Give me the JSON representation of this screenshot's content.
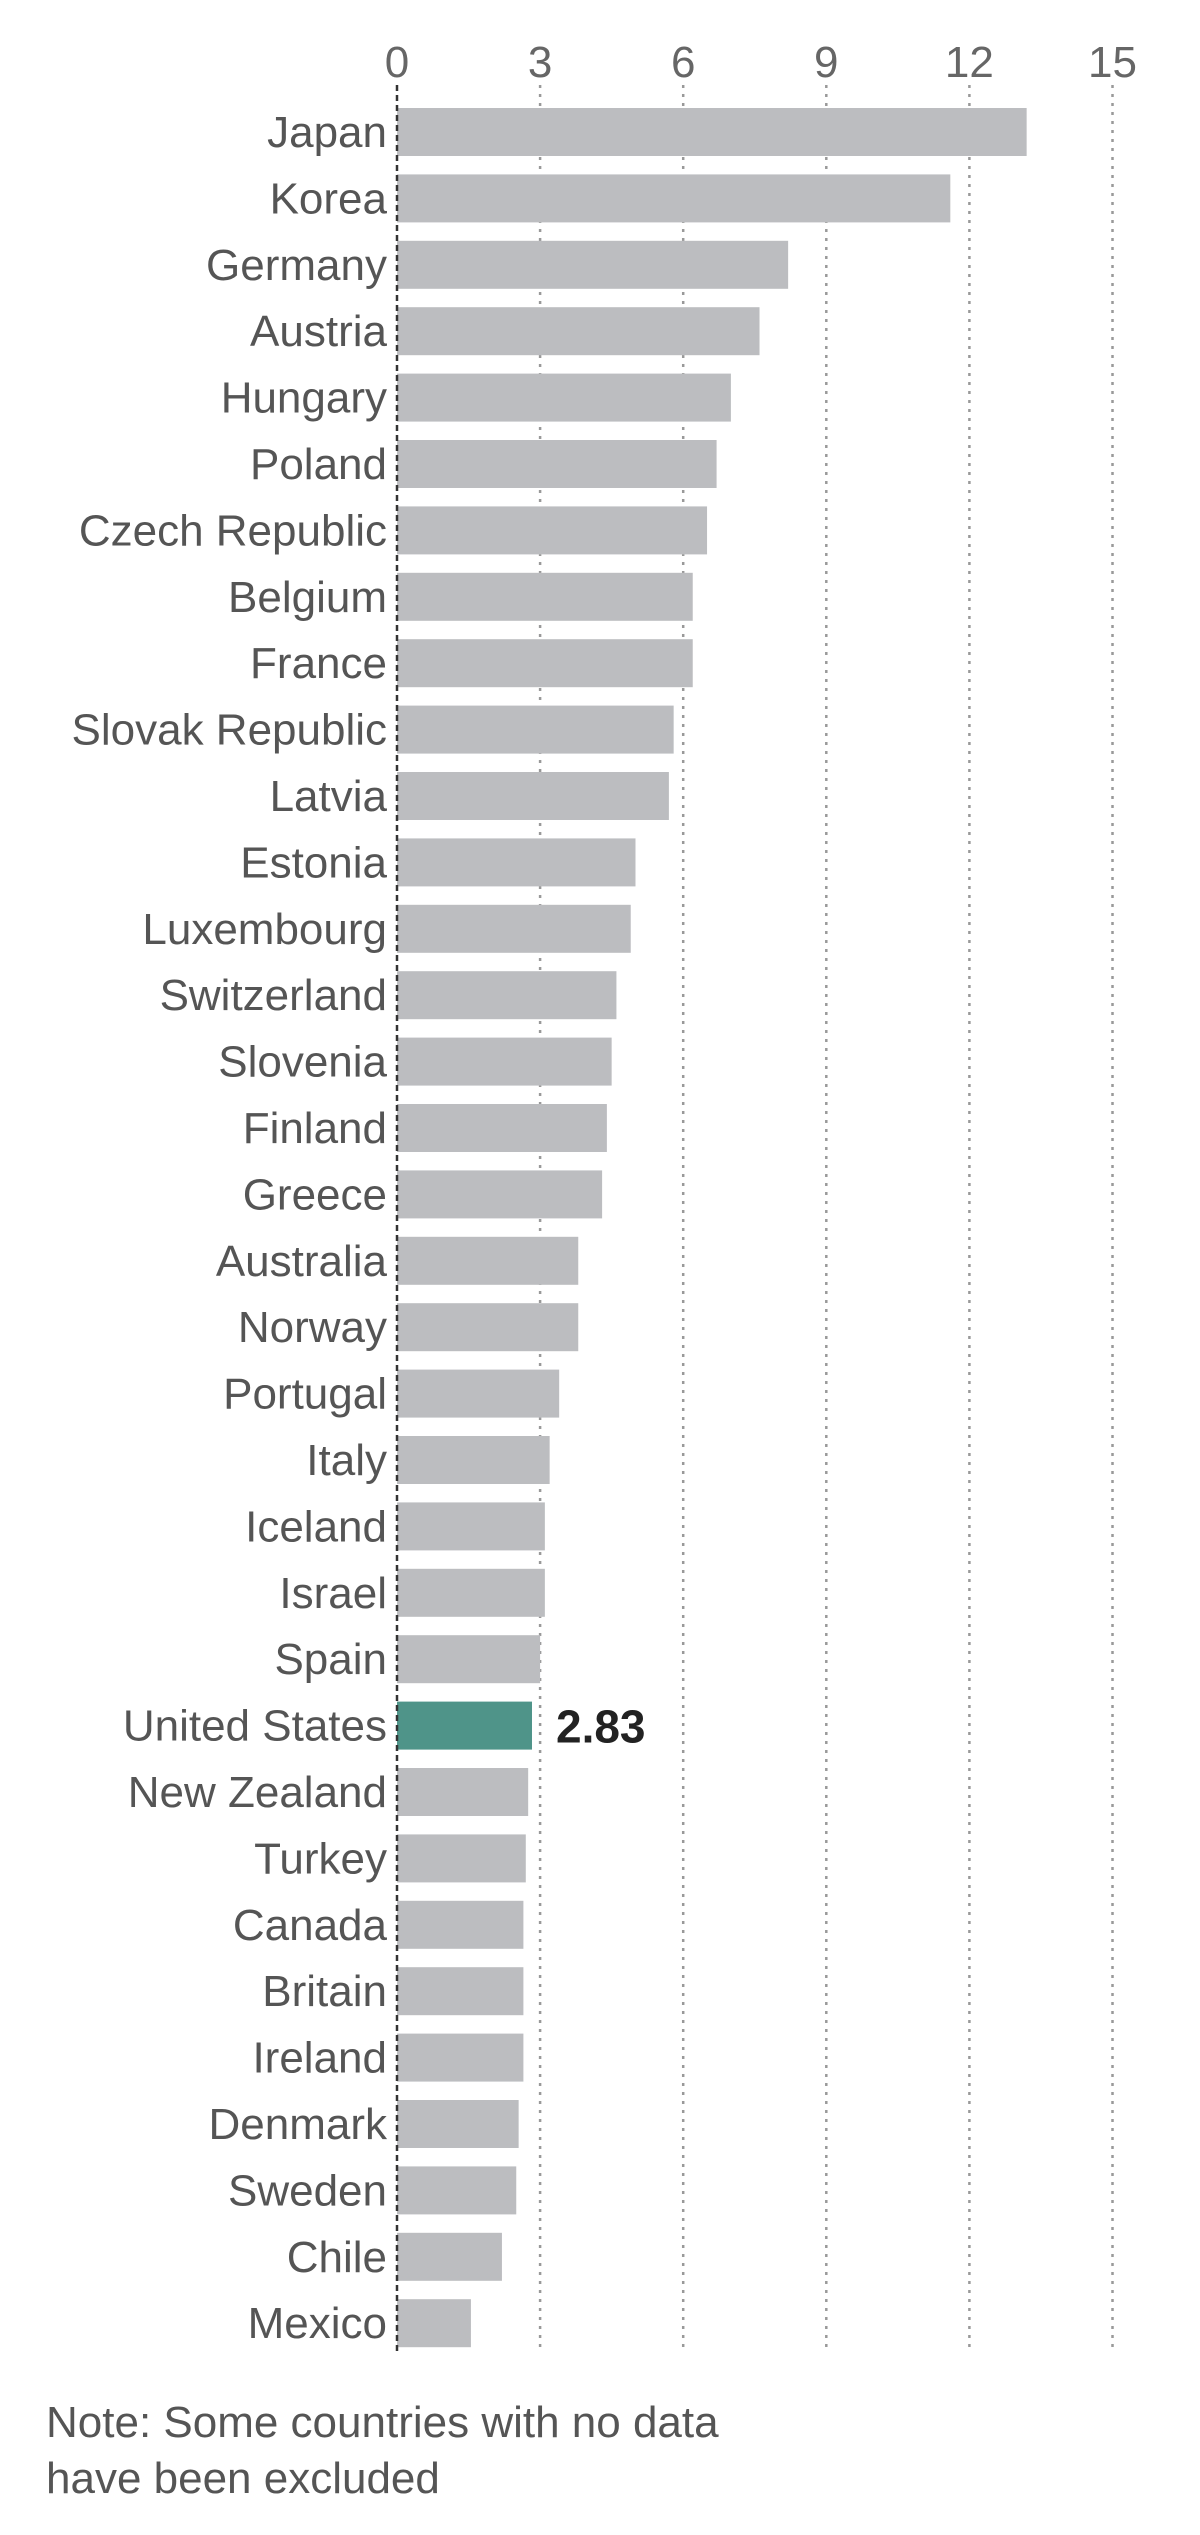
{
  "chart_data": {
    "type": "bar",
    "orientation": "horizontal",
    "xlim": [
      0,
      15
    ],
    "x_ticks": [
      "0",
      "3",
      "6",
      "9",
      "12",
      "15"
    ],
    "grid": "vertical dotted",
    "categories": [
      "Japan",
      "Korea",
      "Germany",
      "Austria",
      "Hungary",
      "Poland",
      "Czech Republic",
      "Belgium",
      "France",
      "Slovak Republic",
      "Latvia",
      "Estonia",
      "Luxembourg",
      "Switzerland",
      "Slovenia",
      "Finland",
      "Greece",
      "Australia",
      "Norway",
      "Portugal",
      "Italy",
      "Iceland",
      "Israel",
      "Spain",
      "United States",
      "New Zealand",
      "Turkey",
      "Canada",
      "Britain",
      "Ireland",
      "Denmark",
      "Sweden",
      "Chile",
      "Mexico"
    ],
    "values": [
      13.2,
      11.6,
      8.2,
      7.6,
      7.0,
      6.7,
      6.5,
      6.2,
      6.2,
      5.8,
      5.7,
      5.0,
      4.9,
      4.6,
      4.5,
      4.4,
      4.3,
      3.8,
      3.8,
      3.4,
      3.2,
      3.1,
      3.1,
      3.0,
      2.83,
      2.75,
      2.7,
      2.65,
      2.65,
      2.65,
      2.55,
      2.5,
      2.2,
      1.55
    ],
    "highlight": {
      "category": "United States",
      "label": "2.83"
    },
    "colors": {
      "bar": "#bcbdc0",
      "highlight": "#4f9489",
      "grid": "#999999",
      "axis": "#333333"
    },
    "title": "",
    "xlabel": "",
    "ylabel": ""
  },
  "note": {
    "text": "Note: Some countries with no data\nhave been excluded"
  }
}
